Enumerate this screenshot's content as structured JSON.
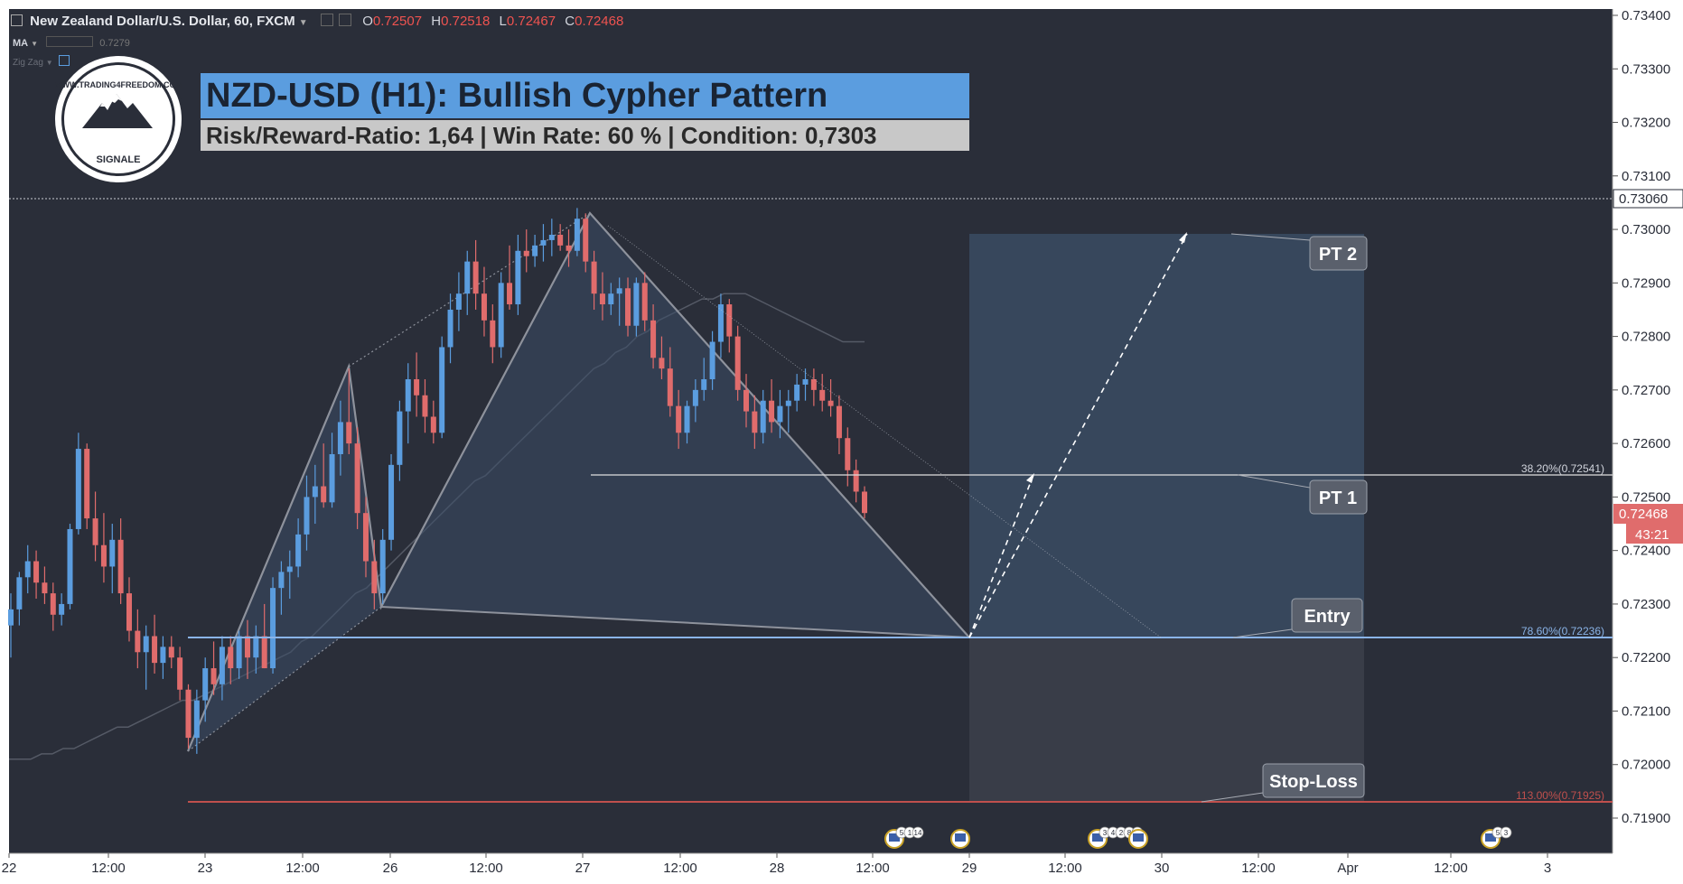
{
  "header": {
    "symbol": "New Zealand Dollar/U.S. Dollar, 60, FXCM",
    "ohlc": [
      {
        "label": "O",
        "value": "0.72507"
      },
      {
        "label": "H",
        "value": "0.72518"
      },
      {
        "label": "L",
        "value": "0.72467"
      },
      {
        "label": "C",
        "value": "0.72468"
      }
    ],
    "indicators": [
      {
        "name": "MA",
        "value": "0.7279"
      },
      {
        "name": "Zig Zag",
        "value": ""
      }
    ]
  },
  "overlay": {
    "title": "NZD-USD (H1): Bullish Cypher Pattern",
    "subtitle": "Risk/Reward-Ratio: 1,64 | Win Rate: 60 % | Condition: 0,7303",
    "logo_text_top": "WWW.TRADING4FREEDOM.COM",
    "logo_text_bottom": "SIGNALE"
  },
  "labels": {
    "pt2": "PT 2",
    "pt1": "PT 1",
    "entry": "Entry",
    "stop": "Stop-Loss",
    "fib_382": "38.20%(0.72541)",
    "fib_786": "78.60%(0.72236)",
    "fib_113": "113.00%(0.71925)"
  },
  "price_axis": {
    "ticks": [
      "0.73400",
      "0.73300",
      "0.73200",
      "0.73100",
      "0.73000",
      "0.72900",
      "0.72800",
      "0.72700",
      "0.72600",
      "0.72500",
      "0.72400",
      "0.72300",
      "0.72200",
      "0.72100",
      "0.72000",
      "0.71900"
    ],
    "dotted_line_label": "0.73060",
    "last_price": "0.72468",
    "countdown": "43:21"
  },
  "time_axis": {
    "ticks": [
      "22",
      "12:00",
      "23",
      "12:00",
      "26",
      "12:00",
      "27",
      "12:00",
      "28",
      "12:00",
      "29",
      "12:00",
      "30",
      "12:00",
      "Apr",
      "12:00",
      "3"
    ]
  },
  "events": [
    {
      "badges": [
        "5",
        "1",
        "14"
      ]
    },
    {
      "badges": []
    },
    {
      "badges": [
        "3",
        "4",
        "2",
        "8",
        "7"
      ]
    },
    {
      "badges": []
    },
    {
      "badges": [
        "5",
        "3"
      ]
    }
  ],
  "colors": {
    "background": "#2a2e39",
    "bull": "#5b9ddf",
    "bear": "#e06c6c",
    "axis_bg": "#ffffff",
    "pattern_fill": "#3a4c66",
    "target_zone": "#3a4b63",
    "stop_zone": "#3b3f4a",
    "stop_line": "#c0504d",
    "entry_line": "#8ab4e8"
  },
  "chart_data": {
    "type": "candlestick",
    "instrument": "New Zealand Dollar/U.S. Dollar",
    "timeframe": "60",
    "ylim": [
      0.7183,
      0.7341
    ],
    "pattern": {
      "name": "Bullish Cypher Pattern",
      "points": [
        {
          "bar": 0,
          "price": 0.7202
        },
        {
          "bar": 1,
          "price": 0.7274
        },
        {
          "bar": 2,
          "price": 0.7229
        },
        {
          "bar": 3,
          "price": 0.7303
        },
        {
          "bar": 4,
          "price": 0.72236
        }
      ]
    },
    "levels": [
      {
        "name": "38.20%",
        "price": 0.72541
      },
      {
        "name": "78.60%",
        "price": 0.72236
      },
      {
        "name": "113.00%",
        "price": 0.71925
      },
      {
        "name": "PT 2",
        "price": 0.72995
      }
    ],
    "candles": [
      {
        "o": 0.7226,
        "h": 0.7232,
        "l": 0.722,
        "c": 0.7229
      },
      {
        "o": 0.7229,
        "h": 0.7236,
        "l": 0.7226,
        "c": 0.7235
      },
      {
        "o": 0.7235,
        "h": 0.7241,
        "l": 0.7232,
        "c": 0.7238
      },
      {
        "o": 0.7238,
        "h": 0.724,
        "l": 0.7231,
        "c": 0.7234
      },
      {
        "o": 0.7234,
        "h": 0.7237,
        "l": 0.723,
        "c": 0.7232
      },
      {
        "o": 0.7232,
        "h": 0.7234,
        "l": 0.7225,
        "c": 0.7228
      },
      {
        "o": 0.7228,
        "h": 0.7232,
        "l": 0.7226,
        "c": 0.723
      },
      {
        "o": 0.723,
        "h": 0.7245,
        "l": 0.7229,
        "c": 0.7244
      },
      {
        "o": 0.7244,
        "h": 0.7262,
        "l": 0.7243,
        "c": 0.7259
      },
      {
        "o": 0.7259,
        "h": 0.726,
        "l": 0.7244,
        "c": 0.7246
      },
      {
        "o": 0.7246,
        "h": 0.7251,
        "l": 0.7238,
        "c": 0.7241
      },
      {
        "o": 0.7241,
        "h": 0.7247,
        "l": 0.7234,
        "c": 0.7237
      },
      {
        "o": 0.7237,
        "h": 0.7245,
        "l": 0.7232,
        "c": 0.7242
      },
      {
        "o": 0.7242,
        "h": 0.7246,
        "l": 0.723,
        "c": 0.7232
      },
      {
        "o": 0.7232,
        "h": 0.7235,
        "l": 0.7223,
        "c": 0.7225
      },
      {
        "o": 0.7225,
        "h": 0.7229,
        "l": 0.7218,
        "c": 0.7221
      },
      {
        "o": 0.7221,
        "h": 0.7226,
        "l": 0.7214,
        "c": 0.7224
      },
      {
        "o": 0.7224,
        "h": 0.7228,
        "l": 0.7217,
        "c": 0.7219
      },
      {
        "o": 0.7219,
        "h": 0.7224,
        "l": 0.7216,
        "c": 0.7222
      },
      {
        "o": 0.7222,
        "h": 0.7224,
        "l": 0.7218,
        "c": 0.722
      },
      {
        "o": 0.722,
        "h": 0.7222,
        "l": 0.7212,
        "c": 0.7214
      },
      {
        "o": 0.7214,
        "h": 0.7215,
        "l": 0.7203,
        "c": 0.7205
      },
      {
        "o": 0.7205,
        "h": 0.7214,
        "l": 0.7202,
        "c": 0.7212
      },
      {
        "o": 0.7212,
        "h": 0.722,
        "l": 0.7208,
        "c": 0.7218
      },
      {
        "o": 0.7218,
        "h": 0.7223,
        "l": 0.7213,
        "c": 0.7215
      },
      {
        "o": 0.7215,
        "h": 0.7224,
        "l": 0.7212,
        "c": 0.7222
      },
      {
        "o": 0.7222,
        "h": 0.7224,
        "l": 0.7215,
        "c": 0.7218
      },
      {
        "o": 0.7218,
        "h": 0.7225,
        "l": 0.7216,
        "c": 0.7224
      },
      {
        "o": 0.7224,
        "h": 0.7227,
        "l": 0.7216,
        "c": 0.722
      },
      {
        "o": 0.722,
        "h": 0.7226,
        "l": 0.7217,
        "c": 0.7224
      },
      {
        "o": 0.7224,
        "h": 0.723,
        "l": 0.7218,
        "c": 0.7218
      },
      {
        "o": 0.7218,
        "h": 0.7235,
        "l": 0.7217,
        "c": 0.7233
      },
      {
        "o": 0.7233,
        "h": 0.7238,
        "l": 0.7228,
        "c": 0.7236
      },
      {
        "o": 0.7236,
        "h": 0.724,
        "l": 0.7231,
        "c": 0.7237
      },
      {
        "o": 0.7237,
        "h": 0.7246,
        "l": 0.7235,
        "c": 0.7243
      },
      {
        "o": 0.7243,
        "h": 0.7254,
        "l": 0.724,
        "c": 0.725
      },
      {
        "o": 0.725,
        "h": 0.7256,
        "l": 0.7245,
        "c": 0.7252
      },
      {
        "o": 0.7252,
        "h": 0.726,
        "l": 0.7248,
        "c": 0.7249
      },
      {
        "o": 0.7249,
        "h": 0.7262,
        "l": 0.7248,
        "c": 0.7258
      },
      {
        "o": 0.7258,
        "h": 0.7268,
        "l": 0.7254,
        "c": 0.7264
      },
      {
        "o": 0.7264,
        "h": 0.7274,
        "l": 0.7258,
        "c": 0.726
      },
      {
        "o": 0.726,
        "h": 0.7263,
        "l": 0.7244,
        "c": 0.7247
      },
      {
        "o": 0.7247,
        "h": 0.725,
        "l": 0.7235,
        "c": 0.7238
      },
      {
        "o": 0.7238,
        "h": 0.7242,
        "l": 0.7229,
        "c": 0.7232
      },
      {
        "o": 0.7232,
        "h": 0.7244,
        "l": 0.723,
        "c": 0.7242
      },
      {
        "o": 0.7242,
        "h": 0.7258,
        "l": 0.724,
        "c": 0.7256
      },
      {
        "o": 0.7256,
        "h": 0.7268,
        "l": 0.7253,
        "c": 0.7266
      },
      {
        "o": 0.7266,
        "h": 0.7275,
        "l": 0.726,
        "c": 0.7272
      },
      {
        "o": 0.7272,
        "h": 0.7277,
        "l": 0.7265,
        "c": 0.7269
      },
      {
        "o": 0.7269,
        "h": 0.7272,
        "l": 0.7262,
        "c": 0.7265
      },
      {
        "o": 0.7265,
        "h": 0.7268,
        "l": 0.726,
        "c": 0.7262
      },
      {
        "o": 0.7262,
        "h": 0.728,
        "l": 0.7261,
        "c": 0.7278
      },
      {
        "o": 0.7278,
        "h": 0.7288,
        "l": 0.7275,
        "c": 0.7285
      },
      {
        "o": 0.7285,
        "h": 0.7292,
        "l": 0.7281,
        "c": 0.7288
      },
      {
        "o": 0.7288,
        "h": 0.7296,
        "l": 0.7284,
        "c": 0.7294
      },
      {
        "o": 0.7294,
        "h": 0.7298,
        "l": 0.7285,
        "c": 0.7288
      },
      {
        "o": 0.7288,
        "h": 0.7293,
        "l": 0.728,
        "c": 0.7283
      },
      {
        "o": 0.7283,
        "h": 0.7286,
        "l": 0.7275,
        "c": 0.7278
      },
      {
        "o": 0.7278,
        "h": 0.7292,
        "l": 0.7276,
        "c": 0.729
      },
      {
        "o": 0.729,
        "h": 0.7297,
        "l": 0.7285,
        "c": 0.7286
      },
      {
        "o": 0.7286,
        "h": 0.7299,
        "l": 0.7284,
        "c": 0.7296
      },
      {
        "o": 0.7296,
        "h": 0.73,
        "l": 0.7292,
        "c": 0.7295
      },
      {
        "o": 0.7295,
        "h": 0.7299,
        "l": 0.7293,
        "c": 0.7297
      },
      {
        "o": 0.7297,
        "h": 0.7301,
        "l": 0.7294,
        "c": 0.7298
      },
      {
        "o": 0.7298,
        "h": 0.7302,
        "l": 0.7295,
        "c": 0.7299
      },
      {
        "o": 0.7299,
        "h": 0.7301,
        "l": 0.7296,
        "c": 0.7297
      },
      {
        "o": 0.7297,
        "h": 0.73,
        "l": 0.7293,
        "c": 0.7296
      },
      {
        "o": 0.7296,
        "h": 0.7304,
        "l": 0.7295,
        "c": 0.7302
      },
      {
        "o": 0.7302,
        "h": 0.7303,
        "l": 0.7292,
        "c": 0.7294
      },
      {
        "o": 0.7294,
        "h": 0.7296,
        "l": 0.7285,
        "c": 0.7288
      },
      {
        "o": 0.7288,
        "h": 0.7292,
        "l": 0.7283,
        "c": 0.7286
      },
      {
        "o": 0.7286,
        "h": 0.729,
        "l": 0.7284,
        "c": 0.7288
      },
      {
        "o": 0.7288,
        "h": 0.7291,
        "l": 0.7282,
        "c": 0.7289
      },
      {
        "o": 0.7289,
        "h": 0.7291,
        "l": 0.728,
        "c": 0.7282
      },
      {
        "o": 0.7282,
        "h": 0.7291,
        "l": 0.728,
        "c": 0.729
      },
      {
        "o": 0.729,
        "h": 0.7292,
        "l": 0.7281,
        "c": 0.7283
      },
      {
        "o": 0.7283,
        "h": 0.7286,
        "l": 0.7274,
        "c": 0.7276
      },
      {
        "o": 0.7276,
        "h": 0.728,
        "l": 0.7272,
        "c": 0.7274
      },
      {
        "o": 0.7274,
        "h": 0.7278,
        "l": 0.7265,
        "c": 0.7267
      },
      {
        "o": 0.7267,
        "h": 0.727,
        "l": 0.7259,
        "c": 0.7262
      },
      {
        "o": 0.7262,
        "h": 0.7268,
        "l": 0.726,
        "c": 0.7267
      },
      {
        "o": 0.7267,
        "h": 0.7272,
        "l": 0.7264,
        "c": 0.727
      },
      {
        "o": 0.727,
        "h": 0.7276,
        "l": 0.7268,
        "c": 0.7272
      },
      {
        "o": 0.7272,
        "h": 0.7281,
        "l": 0.727,
        "c": 0.7279
      },
      {
        "o": 0.7279,
        "h": 0.7288,
        "l": 0.7276,
        "c": 0.7286
      },
      {
        "o": 0.7286,
        "h": 0.7287,
        "l": 0.7277,
        "c": 0.728
      },
      {
        "o": 0.728,
        "h": 0.7282,
        "l": 0.7268,
        "c": 0.727
      },
      {
        "o": 0.727,
        "h": 0.7273,
        "l": 0.7263,
        "c": 0.7266
      },
      {
        "o": 0.7266,
        "h": 0.7269,
        "l": 0.7259,
        "c": 0.7262
      },
      {
        "o": 0.7262,
        "h": 0.727,
        "l": 0.726,
        "c": 0.7268
      },
      {
        "o": 0.7268,
        "h": 0.7272,
        "l": 0.7262,
        "c": 0.7264
      },
      {
        "o": 0.7264,
        "h": 0.727,
        "l": 0.7261,
        "c": 0.7267
      },
      {
        "o": 0.7267,
        "h": 0.727,
        "l": 0.7262,
        "c": 0.7268
      },
      {
        "o": 0.7268,
        "h": 0.7273,
        "l": 0.7266,
        "c": 0.7271
      },
      {
        "o": 0.7271,
        "h": 0.7274,
        "l": 0.7268,
        "c": 0.7272
      },
      {
        "o": 0.7272,
        "h": 0.7274,
        "l": 0.7267,
        "c": 0.727
      },
      {
        "o": 0.727,
        "h": 0.7273,
        "l": 0.7266,
        "c": 0.7268
      },
      {
        "o": 0.7268,
        "h": 0.7272,
        "l": 0.7265,
        "c": 0.7267
      },
      {
        "o": 0.7267,
        "h": 0.7269,
        "l": 0.7258,
        "c": 0.7261
      },
      {
        "o": 0.7261,
        "h": 0.7263,
        "l": 0.7252,
        "c": 0.7255
      },
      {
        "o": 0.7255,
        "h": 0.7257,
        "l": 0.7249,
        "c": 0.7251
      },
      {
        "o": 0.7251,
        "h": 0.7252,
        "l": 0.7246,
        "c": 0.7247
      }
    ],
    "ma": [
      0.7201,
      0.7201,
      0.7201,
      0.7202,
      0.7202,
      0.7203,
      0.7203,
      0.7204,
      0.7205,
      0.7206,
      0.7207,
      0.7207,
      0.7208,
      0.7209,
      0.721,
      0.7211,
      0.7212,
      0.7212,
      0.7213,
      0.7214,
      0.7215,
      0.7216,
      0.7217,
      0.7218,
      0.7219,
      0.722,
      0.7221,
      0.7223,
      0.7224,
      0.7226,
      0.7228,
      0.723,
      0.7232,
      0.7233,
      0.7235,
      0.7237,
      0.7239,
      0.7241,
      0.7243,
      0.7245,
      0.7247,
      0.7249,
      0.7251,
      0.7253,
      0.7254,
      0.7256,
      0.7258,
      0.726,
      0.7262,
      0.7264,
      0.7266,
      0.7268,
      0.727,
      0.7272,
      0.7274,
      0.7275,
      0.7277,
      0.7278,
      0.728,
      0.7281,
      0.7283,
      0.7284,
      0.7285,
      0.7286,
      0.7287,
      0.7287,
      0.7288,
      0.7288,
      0.7288,
      0.7287,
      0.7286,
      0.7285,
      0.7284,
      0.7283,
      0.7282,
      0.7281,
      0.728,
      0.7279,
      0.7279,
      0.7279
    ]
  }
}
